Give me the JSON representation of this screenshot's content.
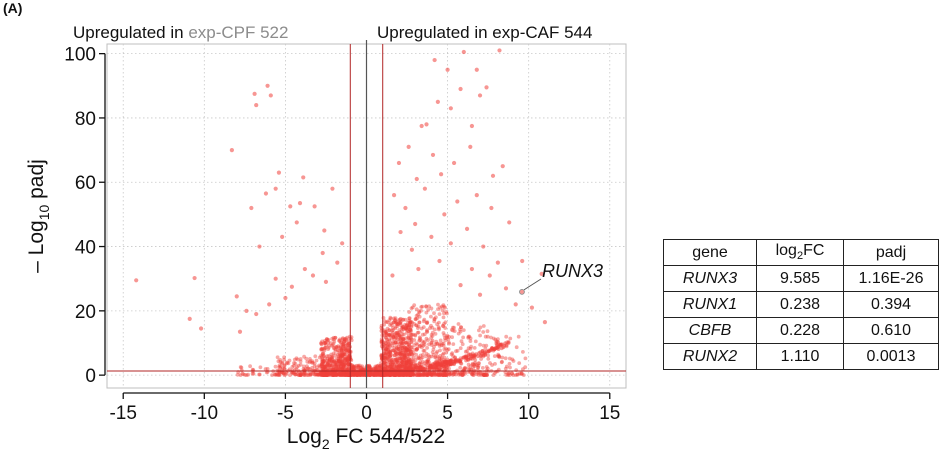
{
  "panel_label": "(A)",
  "chart_data": {
    "type": "scatter",
    "title": "",
    "annotations": {
      "left_header": {
        "prefix": "Upregulated in ",
        "highlight": "exp-CPF 522",
        "highlight_color": "#8c8c8c"
      },
      "right_header": "Upregulated in exp-CAF 544",
      "label_gene": "RUNX3",
      "label_point": {
        "x": 9.585,
        "y": 25.9
      }
    },
    "xlabel": {
      "main": "Log",
      "sub": "2",
      "rest": " FC 544/522"
    },
    "ylabel": {
      "main": "– Log",
      "sub": "10",
      "rest": " padj"
    },
    "xlim": [
      -16,
      16
    ],
    "ylim": [
      -4,
      103
    ],
    "xticks": [
      -15,
      -10,
      -5,
      0,
      5,
      10,
      15
    ],
    "yticks": [
      0,
      20,
      40,
      60,
      80,
      100
    ],
    "grid": true,
    "point_color": "#f0403a",
    "threshold_color": "#b02525",
    "zero_line_color": "#555555",
    "vertical_thresholds": [
      -1,
      1
    ],
    "horizontal_threshold": 1.3,
    "series": [
      {
        "values": [
          {
            "x": -14.2,
            "y": 29.5
          },
          {
            "x": -10.6,
            "y": 30.2
          },
          {
            "x": -10.9,
            "y": 17.5
          },
          {
            "x": -10.2,
            "y": 14.5
          },
          {
            "x": -8.3,
            "y": 70.0
          },
          {
            "x": -7.4,
            "y": 20.0
          },
          {
            "x": -6.9,
            "y": 87.5
          },
          {
            "x": -6.1,
            "y": 90.0
          },
          {
            "x": -6.8,
            "y": 84.0
          },
          {
            "x": -5.9,
            "y": 87.0
          },
          {
            "x": -6.2,
            "y": 56.5
          },
          {
            "x": -5.6,
            "y": 30.0
          },
          {
            "x": -5.4,
            "y": 63.0
          },
          {
            "x": -5.6,
            "y": 58.0
          },
          {
            "x": -7.1,
            "y": 52.0
          },
          {
            "x": -4.7,
            "y": 52.5
          },
          {
            "x": -4.3,
            "y": 47.5
          },
          {
            "x": -4.1,
            "y": 53.5
          },
          {
            "x": -3.2,
            "y": 52.5
          },
          {
            "x": -2.6,
            "y": 45.0
          },
          {
            "x": -2.1,
            "y": 58.0
          },
          {
            "x": -2.7,
            "y": 38.0
          },
          {
            "x": -3.8,
            "y": 33.0
          },
          {
            "x": -4.6,
            "y": 27.5
          },
          {
            "x": -5.0,
            "y": 24.0
          },
          {
            "x": -6.0,
            "y": 22.0
          },
          {
            "x": -6.8,
            "y": 19.0
          },
          {
            "x": -7.8,
            "y": 13.5
          },
          {
            "x": -3.3,
            "y": 31.0
          },
          {
            "x": -2.5,
            "y": 29.0
          },
          {
            "x": -1.8,
            "y": 35.0
          },
          {
            "x": -1.5,
            "y": 41.0
          },
          {
            "x": -6.6,
            "y": 40.0
          },
          {
            "x": -5.2,
            "y": 43.0
          },
          {
            "x": -3.9,
            "y": 61.5
          },
          {
            "x": -8.0,
            "y": 24.5
          },
          {
            "x": 4.2,
            "y": 98.0
          },
          {
            "x": 6.0,
            "y": 100.5
          },
          {
            "x": 8.2,
            "y": 101.0
          },
          {
            "x": 6.8,
            "y": 95.0
          },
          {
            "x": 5.0,
            "y": 95.0
          },
          {
            "x": 5.8,
            "y": 89.0
          },
          {
            "x": 7.4,
            "y": 89.5
          },
          {
            "x": 4.4,
            "y": 85.0
          },
          {
            "x": 7.0,
            "y": 87.0
          },
          {
            "x": 3.4,
            "y": 77.5
          },
          {
            "x": 3.7,
            "y": 78.0
          },
          {
            "x": 5.2,
            "y": 83.0
          },
          {
            "x": 6.5,
            "y": 77.5
          },
          {
            "x": 2.6,
            "y": 71.0
          },
          {
            "x": 6.4,
            "y": 71.0
          },
          {
            "x": 2.0,
            "y": 66.0
          },
          {
            "x": 5.4,
            "y": 66.0
          },
          {
            "x": 4.6,
            "y": 62.5
          },
          {
            "x": 3.6,
            "y": 58.0
          },
          {
            "x": 7.8,
            "y": 62.0
          },
          {
            "x": 8.4,
            "y": 65.0
          },
          {
            "x": 6.8,
            "y": 56.0
          },
          {
            "x": 5.6,
            "y": 54.0
          },
          {
            "x": 7.7,
            "y": 52.0
          },
          {
            "x": 4.8,
            "y": 50.0
          },
          {
            "x": 3.0,
            "y": 47.0
          },
          {
            "x": 2.1,
            "y": 44.5
          },
          {
            "x": 6.2,
            "y": 45.5
          },
          {
            "x": 8.8,
            "y": 47.5
          },
          {
            "x": 4.0,
            "y": 43.0
          },
          {
            "x": 5.2,
            "y": 41.0
          },
          {
            "x": 7.2,
            "y": 40.0
          },
          {
            "x": 2.8,
            "y": 39.0
          },
          {
            "x": 9.6,
            "y": 35.5
          },
          {
            "x": 10.8,
            "y": 31.5
          },
          {
            "x": 9.585,
            "y": 25.9
          },
          {
            "x": 8.1,
            "y": 35.0
          },
          {
            "x": 7.6,
            "y": 31.0
          },
          {
            "x": 6.5,
            "y": 33.0
          },
          {
            "x": 4.5,
            "y": 35.5
          },
          {
            "x": 3.2,
            "y": 33.0
          },
          {
            "x": 1.6,
            "y": 31.0
          },
          {
            "x": 5.8,
            "y": 28.0
          },
          {
            "x": 8.6,
            "y": 27.0
          },
          {
            "x": 7.0,
            "y": 25.0
          },
          {
            "x": 9.2,
            "y": 22.0
          },
          {
            "x": 10.2,
            "y": 21.0
          },
          {
            "x": 11.0,
            "y": 16.5
          },
          {
            "x": 2.4,
            "y": 52.0
          },
          {
            "x": 1.7,
            "y": 56.0
          },
          {
            "x": 4.1,
            "y": 68.5
          },
          {
            "x": 3.1,
            "y": 61.0
          }
        ]
      }
    ],
    "clouds": [
      {
        "xmin": -2.8,
        "xmax": -0.9,
        "ymax": 12,
        "n": 520
      },
      {
        "xmin": -5.5,
        "xmax": -2.6,
        "ymax": 6,
        "n": 140
      },
      {
        "xmin": -8.0,
        "xmax": -5.0,
        "ymax": 3,
        "n": 40
      },
      {
        "xmin": 0.9,
        "xmax": 2.8,
        "ymax": 18,
        "n": 700
      },
      {
        "xmin": 2.6,
        "xmax": 5.0,
        "ymax": 22,
        "n": 380
      },
      {
        "xmin": 4.8,
        "xmax": 7.5,
        "ymax": 16,
        "n": 170
      },
      {
        "xmin": 7.2,
        "xmax": 9.8,
        "ymax": 12,
        "n": 80
      },
      {
        "xmin": -0.9,
        "xmax": 0.9,
        "ymax": 3,
        "n": 260
      }
    ]
  },
  "table": {
    "headers": {
      "col1": "gene",
      "col2_main": "log",
      "col2_sub": "2",
      "col2_rest": "FC",
      "col3": "padj"
    },
    "rows": [
      {
        "gene": "RUNX3",
        "log2fc": "9.585",
        "padj": "1.16E-26"
      },
      {
        "gene": "RUNX1",
        "log2fc": "0.238",
        "padj": "0.394"
      },
      {
        "gene": "CBFB",
        "log2fc": "0.228",
        "padj": "0.610"
      },
      {
        "gene": "RUNX2",
        "log2fc": "1.110",
        "padj": "0.0013"
      }
    ]
  }
}
